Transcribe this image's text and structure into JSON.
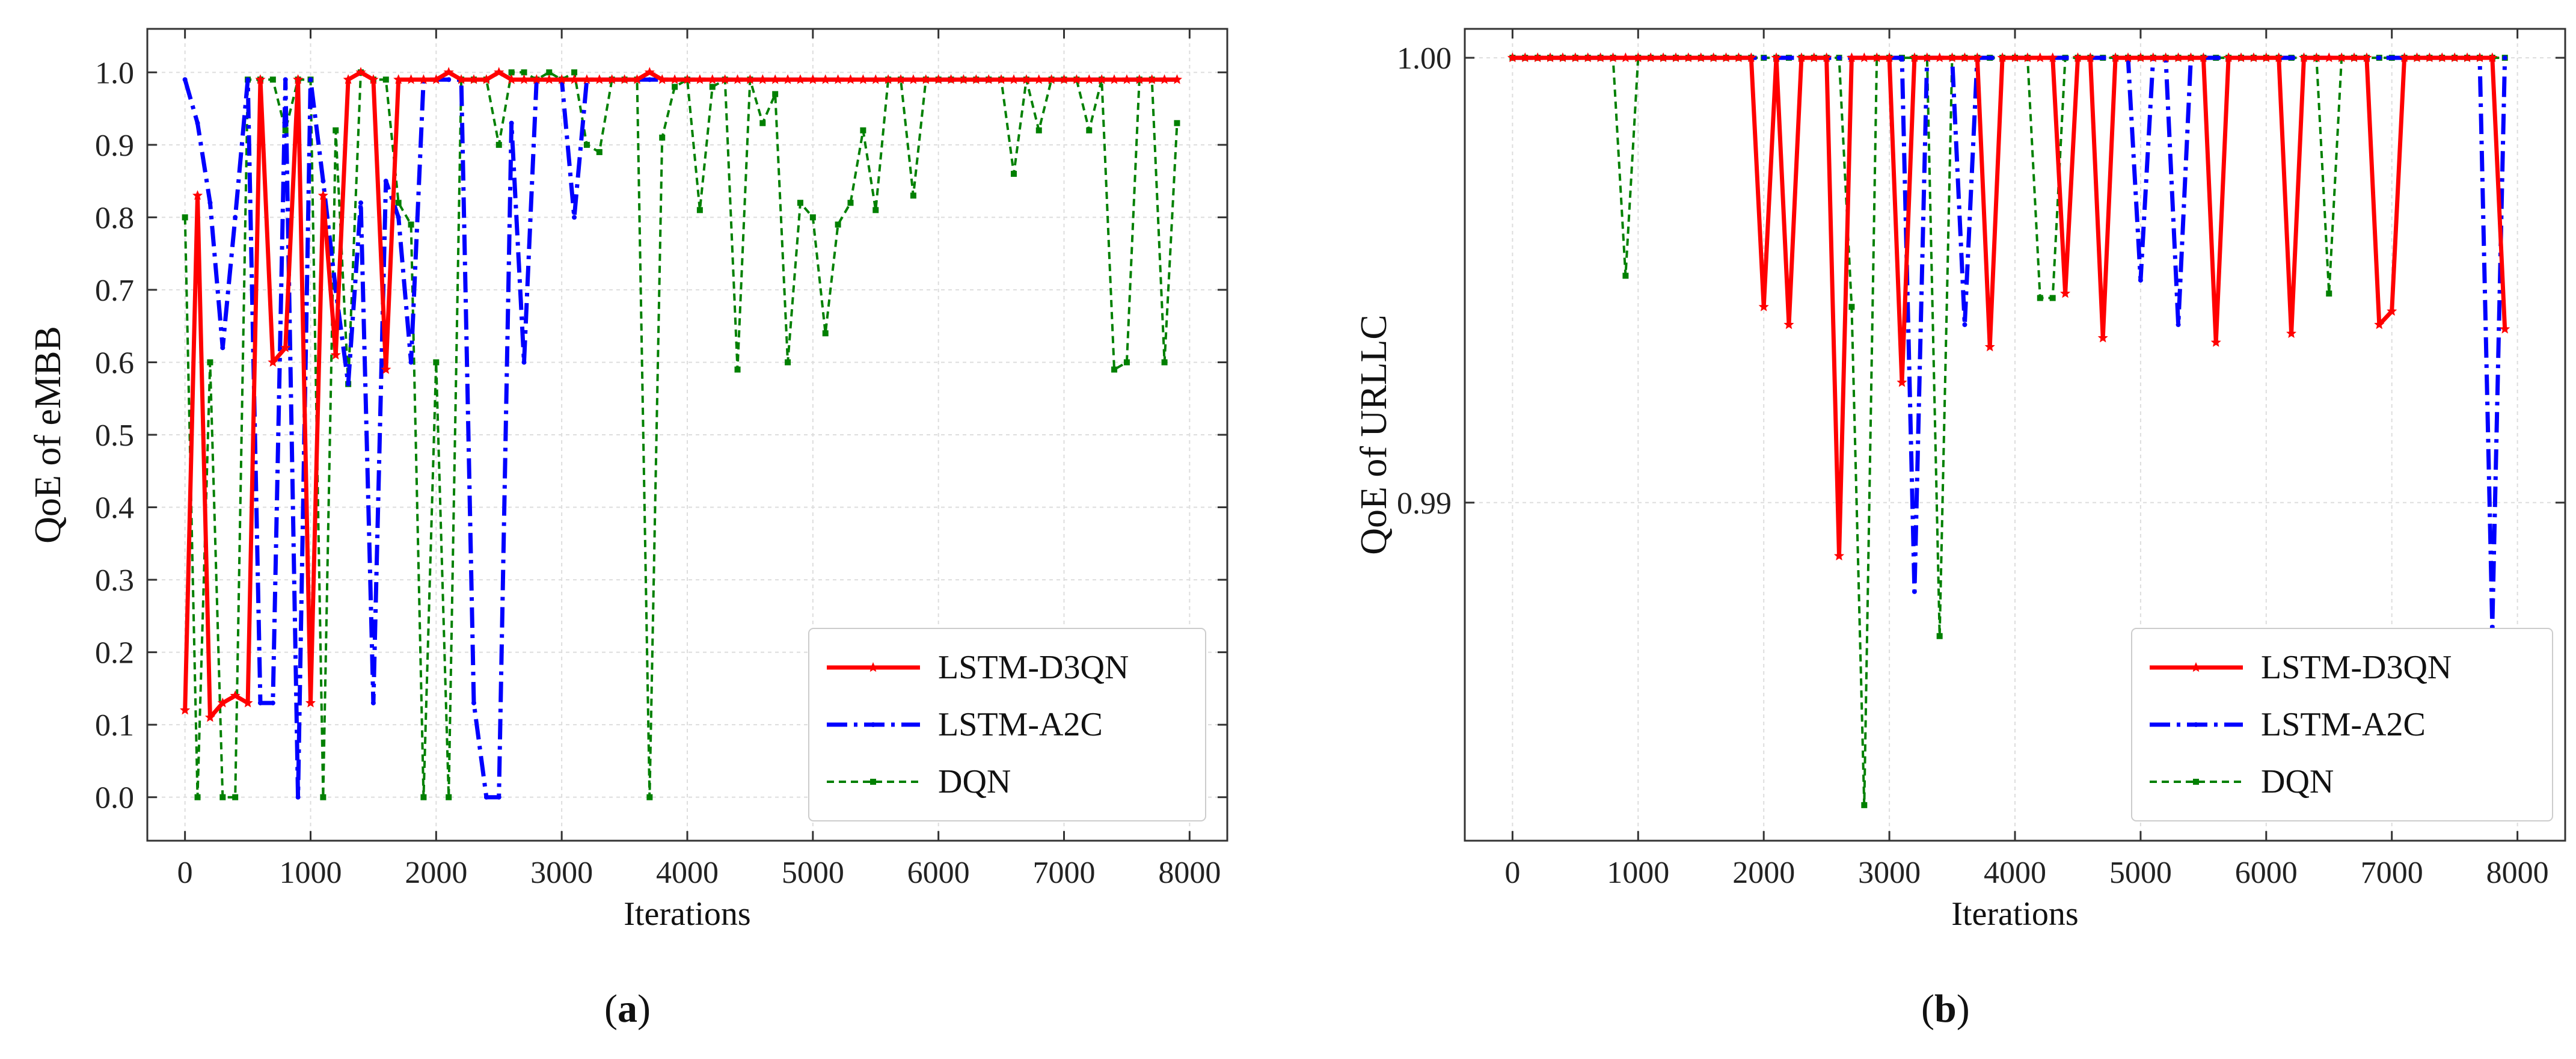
{
  "colors": {
    "lstm_d3qn": "#ff0000",
    "lstm_a2c": "#0000ff",
    "dqn": "#008000",
    "axis": "#333333",
    "grid": "#dddddd"
  },
  "captions": [
    {
      "open": "(",
      "letter": "a",
      "close": ")"
    },
    {
      "open": "(",
      "letter": "b",
      "close": ")"
    }
  ],
  "chart_data": [
    {
      "type": "line",
      "xlabel": "Iterations",
      "ylabel": "QoE of eMBB",
      "xlim": [
        -300,
        8300
      ],
      "ylim": [
        -0.06,
        1.06
      ],
      "xticks": [
        0,
        1000,
        2000,
        3000,
        4000,
        5000,
        6000,
        7000,
        8000
      ],
      "yticks": [
        "0.0",
        "0.1",
        "0.2",
        "0.3",
        "0.4",
        "0.5",
        "0.6",
        "0.7",
        "0.8",
        "0.9",
        "1.0"
      ],
      "grid": true,
      "legend_position": "lower-right",
      "series": [
        {
          "name": "LSTM-D3QN",
          "x": [
            0,
            100,
            200,
            300,
            400,
            500,
            600,
            700,
            800,
            900,
            1000,
            1100,
            1200,
            1300,
            1400,
            1500,
            1600,
            1700,
            1800,
            1900,
            2000,
            2100,
            2200,
            2300,
            2400,
            2500,
            2600,
            2700,
            2800,
            2900,
            3000,
            3100,
            3200,
            3300,
            3400,
            3500,
            3600,
            3700,
            3800,
            3900,
            4000,
            4100,
            4200,
            4300,
            4400,
            4500,
            4600,
            4700,
            4800,
            4900,
            5000,
            5100,
            5200,
            5300,
            5400,
            5500,
            5600,
            5700,
            5800,
            5900,
            6000,
            6100,
            6200,
            6300,
            6400,
            6500,
            6600,
            6700,
            6800,
            6900,
            7000,
            7100,
            7200,
            7300,
            7400,
            7500,
            7600,
            7700,
            7800,
            7900
          ],
          "values": [
            0.12,
            0.83,
            0.11,
            0.13,
            0.14,
            0.13,
            0.99,
            0.6,
            0.62,
            0.99,
            0.13,
            0.83,
            0.61,
            0.99,
            1.0,
            0.99,
            0.59,
            0.99,
            0.99,
            0.99,
            0.99,
            1.0,
            0.99,
            0.99,
            0.99,
            1.0,
            0.99,
            0.99,
            0.99,
            0.99,
            0.99,
            0.99,
            0.99,
            0.99,
            0.99,
            0.99,
            0.99,
            1.0,
            0.99,
            0.99,
            0.99,
            0.99,
            0.99,
            0.99,
            0.99,
            0.99,
            0.99,
            0.99,
            0.99,
            0.99,
            0.99,
            0.99,
            0.99,
            0.99,
            0.99,
            0.99,
            0.99,
            0.99,
            0.99,
            0.99,
            0.99,
            0.99,
            0.99,
            0.99,
            0.99,
            0.99,
            0.99,
            0.99,
            0.99,
            0.99,
            0.99,
            0.99,
            0.99,
            0.99,
            0.99,
            0.99,
            0.99,
            0.99,
            0.99,
            0.99
          ]
        },
        {
          "name": "LSTM-A2C",
          "x": [
            0,
            100,
            200,
            300,
            400,
            500,
            600,
            700,
            800,
            900,
            1000,
            1100,
            1200,
            1300,
            1400,
            1500,
            1600,
            1700,
            1800,
            1900,
            2000,
            2100,
            2200,
            2300,
            2400,
            2500,
            2600,
            2700,
            2800,
            2900,
            3000,
            3100,
            3200,
            3300,
            3400,
            3500,
            3600,
            3700,
            3800,
            3900,
            4000,
            4100,
            4200,
            4300,
            4400,
            4500,
            4600,
            4700,
            4800,
            4900,
            5000,
            5100,
            5200,
            5300,
            5400,
            5500,
            5600,
            5700,
            5800,
            5900,
            6000,
            6100,
            6200,
            6300,
            6400,
            6500,
            6600,
            6700,
            6800,
            6900,
            7000,
            7100,
            7200,
            7300,
            7400,
            7500,
            7600,
            7700,
            7800,
            7900
          ],
          "values": [
            0.99,
            0.93,
            0.82,
            0.62,
            0.8,
            0.99,
            0.13,
            0.13,
            0.99,
            0.0,
            0.99,
            0.85,
            0.7,
            0.57,
            0.82,
            0.13,
            0.85,
            0.8,
            0.6,
            0.99,
            0.99,
            0.99,
            0.99,
            0.13,
            0.0,
            0.0,
            0.93,
            0.6,
            0.99,
            0.99,
            0.99,
            0.8,
            0.99,
            0.99,
            0.99,
            0.99,
            0.99,
            0.99,
            0.99,
            0.99,
            0.99,
            0.99,
            0.99,
            0.99,
            0.99,
            0.99,
            0.99,
            0.99,
            0.99,
            0.99,
            0.99,
            0.99,
            0.99,
            0.99,
            0.99,
            0.99,
            0.99,
            0.99,
            0.99,
            0.99,
            0.99,
            0.99,
            0.99,
            0.99,
            0.99,
            0.99,
            0.99,
            0.99,
            0.99,
            0.99,
            0.99,
            0.99,
            0.99,
            0.99,
            0.99,
            0.99,
            0.99,
            0.99,
            0.99,
            0.99
          ]
        },
        {
          "name": "DQN",
          "x": [
            0,
            100,
            200,
            300,
            400,
            500,
            600,
            700,
            800,
            900,
            1000,
            1100,
            1200,
            1300,
            1400,
            1500,
            1600,
            1700,
            1800,
            1900,
            2000,
            2100,
            2200,
            2300,
            2400,
            2500,
            2600,
            2700,
            2800,
            2900,
            3000,
            3100,
            3200,
            3300,
            3400,
            3500,
            3600,
            3700,
            3800,
            3900,
            4000,
            4100,
            4200,
            4300,
            4400,
            4500,
            4600,
            4700,
            4800,
            4900,
            5000,
            5100,
            5200,
            5300,
            5400,
            5500,
            5600,
            5700,
            5800,
            5900,
            6000,
            6100,
            6200,
            6300,
            6400,
            6500,
            6600,
            6700,
            6800,
            6900,
            7000,
            7100,
            7200,
            7300,
            7400,
            7500,
            7600,
            7700,
            7800,
            7900
          ],
          "values": [
            0.8,
            0.0,
            0.6,
            0.0,
            0.0,
            0.99,
            0.99,
            0.99,
            0.92,
            0.99,
            0.99,
            0.0,
            0.92,
            0.57,
            1.0,
            0.99,
            0.99,
            0.82,
            0.79,
            0.0,
            0.6,
            0.0,
            0.99,
            0.99,
            0.99,
            0.9,
            1.0,
            1.0,
            0.99,
            1.0,
            0.99,
            1.0,
            0.9,
            0.89,
            0.99,
            0.99,
            0.99,
            0.0,
            0.91,
            0.98,
            0.99,
            0.81,
            0.98,
            0.99,
            0.59,
            0.99,
            0.93,
            0.97,
            0.6,
            0.82,
            0.8,
            0.64,
            0.79,
            0.82,
            0.92,
            0.81,
            0.99,
            0.99,
            0.83,
            0.99,
            0.99,
            0.99,
            0.99,
            0.99,
            0.99,
            0.99,
            0.86,
            0.99,
            0.92,
            0.99,
            0.99,
            0.99,
            0.92,
            0.99,
            0.59,
            0.6,
            0.99,
            0.99,
            0.6,
            0.93
          ]
        }
      ]
    },
    {
      "type": "line",
      "xlabel": "Iterations",
      "ylabel": "QoE of URLLC",
      "xlim": [
        -380,
        8380
      ],
      "ylim": [
        0.9824,
        1.00065
      ],
      "xticks": [
        0,
        1000,
        2000,
        3000,
        4000,
        5000,
        6000,
        7000,
        8000
      ],
      "yticks": [
        "0.99",
        "1.00"
      ],
      "ytick_values": [
        0.99,
        1.0
      ],
      "grid": true,
      "legend_position": "lower-right",
      "series": [
        {
          "name": "LSTM-D3QN",
          "x": [
            0,
            100,
            200,
            300,
            400,
            500,
            600,
            700,
            800,
            900,
            1000,
            1100,
            1200,
            1300,
            1400,
            1500,
            1600,
            1700,
            1800,
            1900,
            2000,
            2100,
            2200,
            2300,
            2400,
            2500,
            2600,
            2700,
            2800,
            2900,
            3000,
            3100,
            3200,
            3300,
            3400,
            3500,
            3600,
            3700,
            3800,
            3900,
            4000,
            4100,
            4200,
            4300,
            4400,
            4500,
            4600,
            4700,
            4800,
            4900,
            5000,
            5100,
            5200,
            5300,
            5400,
            5500,
            5600,
            5700,
            5800,
            5900,
            6000,
            6100,
            6200,
            6300,
            6400,
            6500,
            6600,
            6700,
            6800,
            6900,
            7000,
            7100,
            7200,
            7300,
            7400,
            7500,
            7600,
            7700,
            7800,
            7900
          ],
          "values": [
            1.0,
            1.0,
            1.0,
            1.0,
            1.0,
            1.0,
            1.0,
            1.0,
            1.0,
            1.0,
            1.0,
            1.0,
            1.0,
            1.0,
            1.0,
            1.0,
            1.0,
            1.0,
            1.0,
            1.0,
            0.9944,
            1.0,
            0.994,
            1.0,
            1.0,
            1.0,
            0.9888,
            1.0,
            1.0,
            1.0,
            1.0,
            0.9927,
            1.0,
            1.0,
            1.0,
            1.0,
            1.0,
            1.0,
            0.9935,
            1.0,
            1.0,
            1.0,
            1.0,
            1.0,
            0.9947,
            1.0,
            1.0,
            0.9937,
            1.0,
            1.0,
            1.0,
            1.0,
            1.0,
            1.0,
            1.0,
            1.0,
            0.9936,
            1.0,
            1.0,
            1.0,
            1.0,
            1.0,
            0.9938,
            1.0,
            1.0,
            1.0,
            1.0,
            1.0,
            1.0,
            0.994,
            0.9943,
            1.0,
            1.0,
            1.0,
            1.0,
            1.0,
            1.0,
            1.0,
            1.0,
            0.9939
          ]
        },
        {
          "name": "LSTM-A2C",
          "x": [
            0,
            100,
            200,
            300,
            400,
            500,
            600,
            700,
            800,
            900,
            1000,
            1100,
            1200,
            1300,
            1400,
            1500,
            1600,
            1700,
            1800,
            1900,
            2000,
            2100,
            2200,
            2300,
            2400,
            2500,
            2600,
            2700,
            2800,
            2900,
            3000,
            3100,
            3200,
            3300,
            3400,
            3500,
            3600,
            3700,
            3800,
            3900,
            4000,
            4100,
            4200,
            4300,
            4400,
            4500,
            4600,
            4700,
            4800,
            4900,
            5000,
            5100,
            5200,
            5300,
            5400,
            5500,
            5600,
            5700,
            5800,
            5900,
            6000,
            6100,
            6200,
            6300,
            6400,
            6500,
            6600,
            6700,
            6800,
            6900,
            7000,
            7100,
            7200,
            7300,
            7400,
            7500,
            7600,
            7700,
            7800,
            7900
          ],
          "values": [
            1.0,
            1.0,
            1.0,
            1.0,
            1.0,
            1.0,
            1.0,
            1.0,
            1.0,
            1.0,
            1.0,
            1.0,
            1.0,
            1.0,
            1.0,
            1.0,
            1.0,
            1.0,
            1.0,
            1.0,
            1.0,
            1.0,
            1.0,
            1.0,
            1.0,
            1.0,
            1.0,
            1.0,
            1.0,
            1.0,
            1.0,
            1.0,
            0.988,
            1.0,
            1.0,
            1.0,
            0.994,
            1.0,
            1.0,
            1.0,
            1.0,
            1.0,
            1.0,
            1.0,
            1.0,
            1.0,
            1.0,
            1.0,
            1.0,
            1.0,
            0.995,
            1.0,
            1.0,
            0.994,
            1.0,
            1.0,
            1.0,
            1.0,
            1.0,
            1.0,
            1.0,
            1.0,
            1.0,
            1.0,
            1.0,
            1.0,
            1.0,
            1.0,
            1.0,
            1.0,
            1.0,
            1.0,
            1.0,
            1.0,
            1.0,
            1.0,
            1.0,
            1.0,
            0.9872,
            1.0
          ]
        },
        {
          "name": "DQN",
          "x": [
            0,
            100,
            200,
            300,
            400,
            500,
            600,
            700,
            800,
            900,
            1000,
            1100,
            1200,
            1300,
            1400,
            1500,
            1600,
            1700,
            1800,
            1900,
            2000,
            2100,
            2200,
            2300,
            2400,
            2500,
            2600,
            2700,
            2800,
            2900,
            3000,
            3100,
            3200,
            3300,
            3400,
            3500,
            3600,
            3700,
            3800,
            3900,
            4000,
            4100,
            4200,
            4300,
            4400,
            4500,
            4600,
            4700,
            4800,
            4900,
            5000,
            5100,
            5200,
            5300,
            5400,
            5500,
            5600,
            5700,
            5800,
            5900,
            6000,
            6100,
            6200,
            6300,
            6400,
            6500,
            6600,
            6700,
            6800,
            6900,
            7000,
            7100,
            7200,
            7300,
            7400,
            7500,
            7600,
            7700,
            7800,
            7900
          ],
          "values": [
            1.0,
            1.0,
            1.0,
            1.0,
            1.0,
            1.0,
            1.0,
            1.0,
            1.0,
            0.9951,
            1.0,
            1.0,
            1.0,
            1.0,
            1.0,
            1.0,
            1.0,
            1.0,
            1.0,
            1.0,
            1.0,
            1.0,
            1.0,
            1.0,
            1.0,
            1.0,
            1.0,
            0.9944,
            0.9832,
            1.0,
            1.0,
            1.0,
            1.0,
            1.0,
            0.987,
            1.0,
            1.0,
            1.0,
            1.0,
            1.0,
            1.0,
            1.0,
            0.9946,
            0.9946,
            1.0,
            1.0,
            1.0,
            1.0,
            1.0,
            1.0,
            1.0,
            1.0,
            1.0,
            1.0,
            1.0,
            1.0,
            1.0,
            1.0,
            1.0,
            1.0,
            1.0,
            1.0,
            1.0,
            1.0,
            1.0,
            0.9947,
            1.0,
            1.0,
            1.0,
            1.0,
            1.0,
            1.0,
            1.0,
            1.0,
            1.0,
            1.0,
            1.0,
            1.0,
            1.0,
            1.0
          ]
        }
      ]
    }
  ]
}
